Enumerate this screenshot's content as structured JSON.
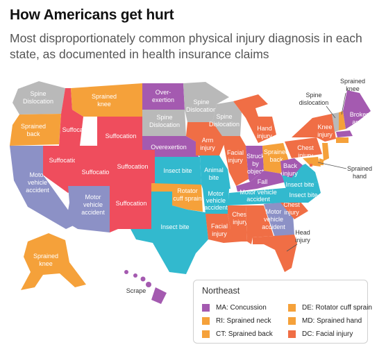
{
  "header": {
    "title": "How Americans get hurt",
    "subtitle": "Most disproportionately common physical injury diagnosis in each state, as documented in health insurance claims"
  },
  "colors": {
    "orange": "#F5A13A",
    "red": "#EF4D5D",
    "coral": "#F06E45",
    "purple": "#A45AB0",
    "gray": "#B9B9B9",
    "blue": "#8C91C6",
    "cyan": "#32B9CE",
    "concussion": "#A45AB0",
    "rotator": "#F5A13A",
    "sprained_neck": "#F5A13A",
    "sprained_hand": "#F5A13A",
    "sprained_back": "#F5A13A",
    "facial_injury": "#F06E45"
  },
  "map": {
    "labels": {
      "wa": "Spine",
      "wa2": "Dislocation",
      "or": "Sprained",
      "or2": "back",
      "ca": "Motor",
      "ca2": "vehicle",
      "ca3": "accident",
      "nv": "Suffocation",
      "id": "Suffocation",
      "mt": "Sprained",
      "mt2": "knee",
      "wy": "Suffocation",
      "ut": "Suffocation",
      "co": "Suffocation",
      "az": "Motor",
      "az2": "vehicle",
      "az3": "accident",
      "nm": "Suffocation",
      "nd": "Over-",
      "nd2": "exertion",
      "sd": "Spine",
      "sd2": "Dislocation",
      "ne": "Overexertion",
      "ks": "Insect bite",
      "ok": "Rotator",
      "ok2": "cuff sprain",
      "tx": "Insect bite",
      "mn": "Spine",
      "mn2": "Dislocation",
      "ia": "Arm",
      "ia2": "injury",
      "mo": "Animal",
      "mo2": "bite",
      "ar": "Motor",
      "ar2": "vehicle",
      "ar3": "accident",
      "la": "Facial",
      "la2": "injury",
      "wi": "Spine",
      "wi2": "Dislocation",
      "il": "Facial",
      "il2": "injury",
      "mi": "Hand",
      "mi2": "injury",
      "in": "Struck",
      "in2": "by",
      "in3": "object",
      "ky": "Fall",
      "tn": "Motor vehicle",
      "tn2": "accident",
      "ms": "Chest",
      "ms2": "injury",
      "al": "Motor",
      "al2": "vehicle",
      "al3": "accident",
      "oh": "Sprained",
      "oh2": "back",
      "wv": "Back",
      "wv2": "injury",
      "va": "Insect bite",
      "nc": "Insect bite",
      "sc": "Chest",
      "sc2": "injury",
      "pa": "Chest",
      "pa2": "injury",
      "ny": "Knee",
      "ny2": "injury",
      "me": "Broken",
      "me2": "ankle",
      "ak": "Sprained",
      "ak2": "knee"
    },
    "callouts": {
      "vt": "Spine",
      "vt2": "dislocation",
      "nh": "Sprained",
      "nh2": "knee",
      "md": "Sprained",
      "md2": "hand",
      "fl": "Head",
      "fl2": "injury",
      "hi": "Scrape"
    }
  },
  "legend": {
    "title": "Northeast",
    "items": [
      {
        "label": "MA:  Concussion",
        "color": "#A45AB0"
      },
      {
        "label": "RI:  Sprained neck",
        "color": "#F5A13A"
      },
      {
        "label": "CT:  Sprained back",
        "color": "#F5A13A"
      },
      {
        "label": "DE:  Rotator cuff sprain",
        "color": "#F5A13A"
      },
      {
        "label": "MD:  Sprained hand",
        "color": "#F5A13A"
      },
      {
        "label": "DC:  Facial injury",
        "color": "#F06E45"
      }
    ]
  }
}
